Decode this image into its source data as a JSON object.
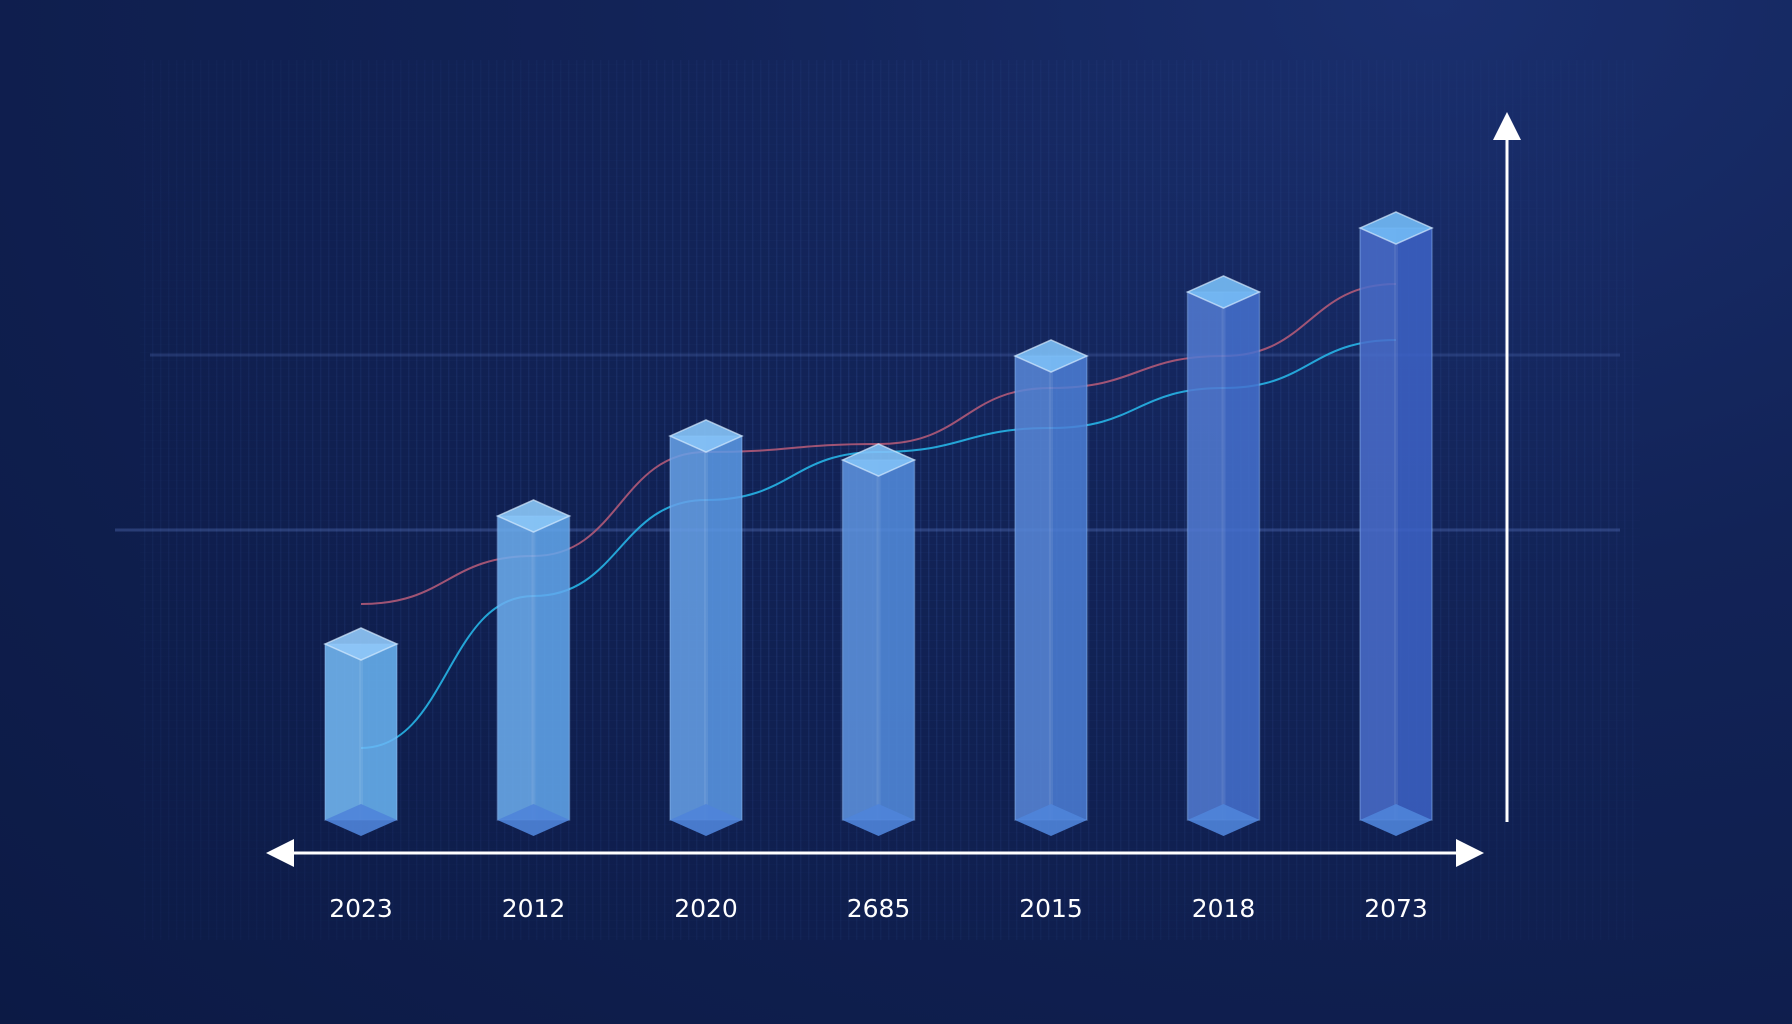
{
  "chart_data": {
    "type": "bar",
    "title": "",
    "xlabel": "",
    "ylabel": "",
    "categories": [
      "2023",
      "2012",
      "2020",
      "2685",
      "2015",
      "2018",
      "2073"
    ],
    "values": [
      22,
      38,
      48,
      45,
      58,
      66,
      74
    ],
    "ylim": [
      0,
      100
    ],
    "y_ticks_shown": false,
    "grid": false,
    "legend": "none",
    "overlay_lines": [
      {
        "color": "#27b4e6",
        "values": [
          9,
          28,
          40,
          46,
          49,
          54,
          60
        ]
      },
      {
        "color": "#b05a78",
        "values": [
          27,
          33,
          46,
          47,
          54,
          58,
          67
        ]
      }
    ]
  },
  "colors": {
    "background": "#0f1f50",
    "bar_light": "#6bb6f5",
    "bar_dark": "#3d63c7",
    "axis": "#ffffff"
  }
}
